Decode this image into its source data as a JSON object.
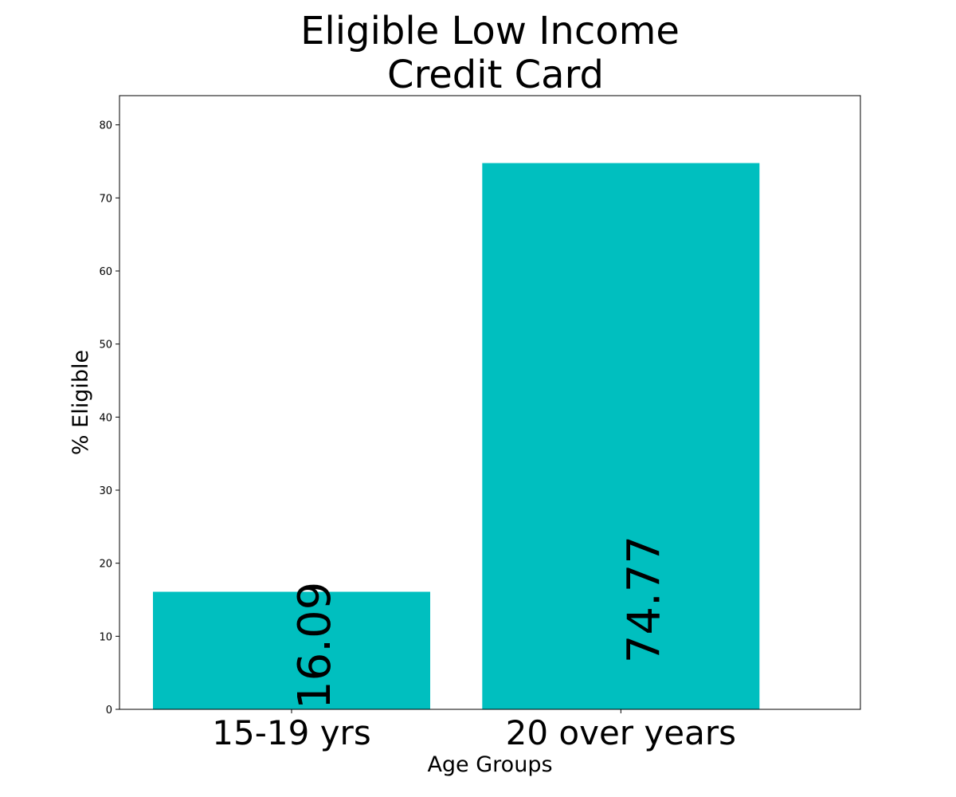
{
  "chart_data": {
    "type": "bar",
    "title_lines": [
      "Eligible Low Income",
      "Credit Card"
    ],
    "xlabel": "Age Groups",
    "ylabel": "% Eligible",
    "categories": [
      "15-19 yrs",
      "20 over years"
    ],
    "values": [
      16.09,
      74.77
    ],
    "data_labels": [
      "16.09",
      "74.77"
    ],
    "yticks": [
      "0",
      "10",
      "20",
      "30",
      "40",
      "50",
      "60",
      "70",
      "80"
    ],
    "ylim": [
      0,
      84
    ],
    "bar_color": "#00bfbf",
    "grid": false,
    "legend": "none"
  }
}
